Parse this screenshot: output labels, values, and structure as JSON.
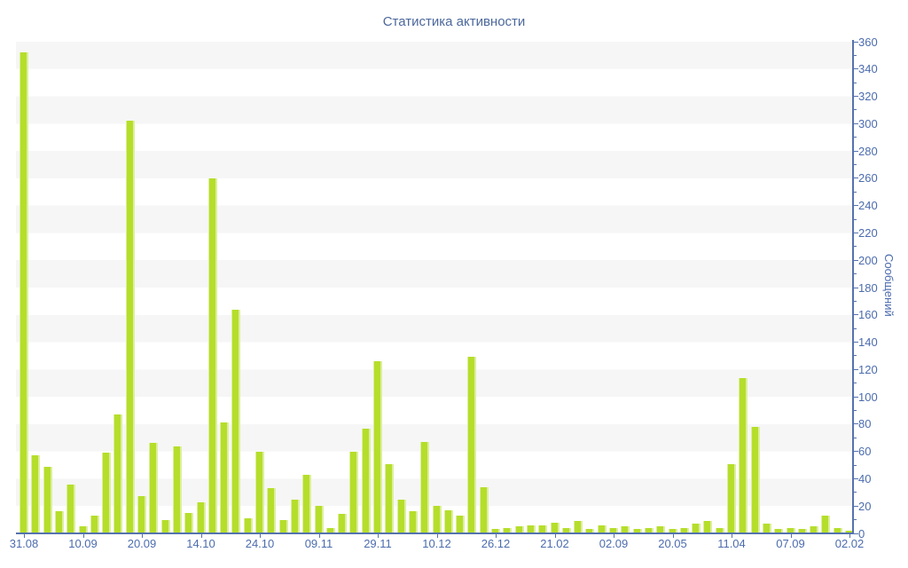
{
  "chart": {
    "title": "Статистика активности",
    "y_axis_label": "Сообщений"
  },
  "chart_data": {
    "type": "bar",
    "title": "Статистика активности",
    "xlabel": "",
    "ylabel": "Сообщений",
    "ylim": [
      0,
      360
    ],
    "y_tick_step": 20,
    "y_minor_tick_step": 10,
    "legend": "none",
    "grid": "alternating white / light-gray horizontal bands every 20 units",
    "x_tick_labels": [
      "31.08",
      "10.09",
      "20.09",
      "14.10",
      "24.10",
      "09.11",
      "29.11",
      "10.12",
      "26.12",
      "21.02",
      "02.09",
      "20.05",
      "11.04",
      "07.09",
      "02.02"
    ],
    "x_label_every_n_bars": 5,
    "values": [
      352,
      57,
      49,
      16,
      36,
      5,
      13,
      59,
      87,
      302,
      27,
      66,
      10,
      64,
      15,
      23,
      260,
      81,
      164,
      11,
      60,
      33,
      10,
      25,
      43,
      20,
      4,
      14,
      60,
      77,
      126,
      51,
      25,
      16,
      67,
      20,
      17,
      13,
      129,
      34,
      3,
      4,
      5,
      6,
      6,
      8,
      4,
      9,
      3,
      6,
      4,
      5,
      3,
      4,
      5,
      3,
      4,
      7,
      9,
      4,
      51,
      114,
      78,
      7,
      3,
      4,
      3,
      5,
      13,
      4,
      2
    ]
  },
  "colors": {
    "bar": "#b5de2b",
    "bar-highlight": "#dcef9c",
    "axis": "#5572ae",
    "tick-text": "#4c6cae",
    "title-text": "#4c689c",
    "band": "#f6f6f6",
    "background": "#ffffff"
  }
}
